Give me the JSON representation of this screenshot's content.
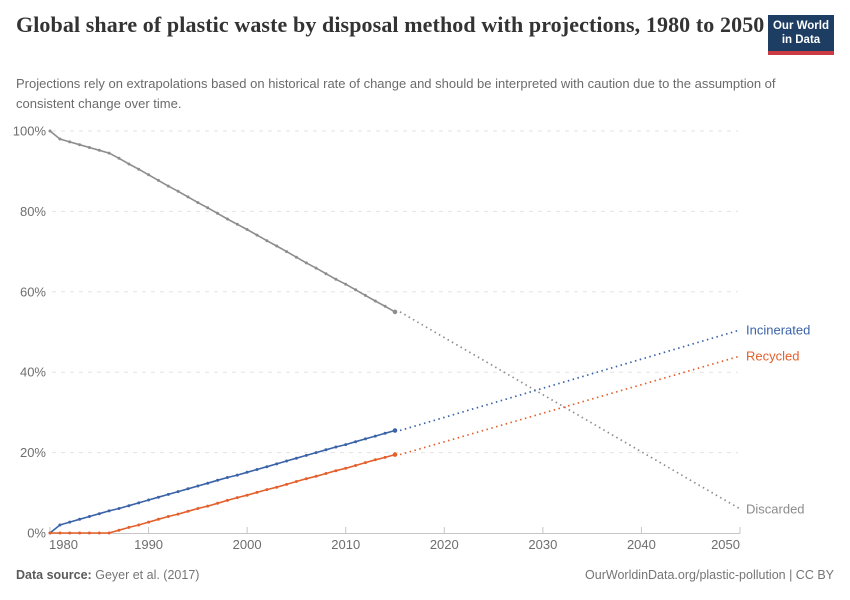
{
  "logo": {
    "line1": "Our World",
    "line2": "in Data",
    "bg_color": "#1d3d63",
    "accent_color": "#cc3b41"
  },
  "footer": {
    "source_label": "Data source:",
    "source_value": "Geyer et al. (2017)",
    "credit": "OurWorldinData.org/plastic-pollution | CC BY"
  },
  "chart_data": {
    "type": "line",
    "title": "Global share of plastic waste by disposal method with projections, 1980 to 2050",
    "subtitle": "Projections rely on extrapolations based on historical rate of change and should be interpreted with caution due to the assumption of consistent change over time.",
    "xlabel": "",
    "ylabel": "",
    "xlim": [
      1980,
      2050
    ],
    "ylim": [
      0,
      100
    ],
    "x_ticks": [
      1980,
      1990,
      2000,
      2010,
      2020,
      2030,
      2040,
      2050
    ],
    "y_ticks": [
      0,
      20,
      40,
      60,
      80,
      100
    ],
    "y_tick_suffix": "%",
    "grid": "dashed-horizontal",
    "legend_position": "end-of-line-labels",
    "historical_range": [
      1980,
      2015
    ],
    "projection_range": [
      2015,
      2050
    ],
    "series": [
      {
        "name": "Discarded",
        "color": "#8d8d8d",
        "label_color": "#8b8b8b",
        "historical": {
          "start_year": 1980,
          "values": [
            100,
            98,
            97.3,
            96.6,
            95.9,
            95.2,
            94.5,
            93.2,
            91.8,
            90.5,
            89.1,
            87.7,
            86.3,
            85,
            83.6,
            82.2,
            80.9,
            79.5,
            78.1,
            76.8,
            75.5,
            74.1,
            72.7,
            71.4,
            70,
            68.6,
            67.2,
            65.9,
            64.5,
            63.1,
            61.9,
            60.5,
            59.1,
            57.7,
            56.4,
            55
          ]
        },
        "projection": {
          "years": [
            2015,
            2050
          ],
          "values": [
            55,
            6
          ]
        }
      },
      {
        "name": "Incinerated",
        "color": "#3a63a8",
        "label_color": "#3a63a8",
        "historical": {
          "start_year": 1980,
          "values": [
            0,
            2,
            2.7,
            3.4,
            4.1,
            4.8,
            5.5,
            6.1,
            6.8,
            7.5,
            8.2,
            8.9,
            9.6,
            10.3,
            11,
            11.7,
            12.4,
            13.1,
            13.8,
            14.4,
            15.1,
            15.8,
            16.5,
            17.2,
            17.9,
            18.6,
            19.3,
            20,
            20.7,
            21.4,
            22,
            22.7,
            23.4,
            24.1,
            24.8,
            25.5
          ]
        },
        "projection": {
          "years": [
            2015,
            2050
          ],
          "values": [
            25.5,
            50.5
          ]
        }
      },
      {
        "name": "Recycled",
        "color": "#e4602c",
        "label_color": "#e4602c",
        "historical": {
          "start_year": 1980,
          "values": [
            0,
            0,
            0,
            0,
            0,
            0,
            0,
            0.7,
            1.4,
            2,
            2.7,
            3.4,
            4.1,
            4.7,
            5.4,
            6.1,
            6.7,
            7.4,
            8.1,
            8.8,
            9.4,
            10.1,
            10.8,
            11.4,
            12.1,
            12.8,
            13.5,
            14.1,
            14.8,
            15.5,
            16.1,
            16.8,
            17.5,
            18.2,
            18.8,
            19.5
          ]
        },
        "projection": {
          "years": [
            2015,
            2050
          ],
          "values": [
            19.5,
            44
          ]
        }
      }
    ]
  }
}
